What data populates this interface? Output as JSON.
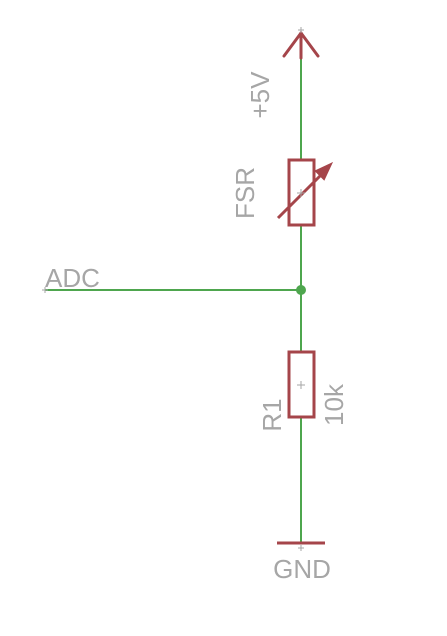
{
  "schematic": {
    "labels": {
      "vcc": "+5V",
      "fsr": "FSR",
      "adc": "ADC",
      "r1_name": "R1",
      "r1_value": "10k",
      "gnd": "GND"
    },
    "colors": {
      "wire": "#4ea64e",
      "junction": "#4ea64e",
      "symbol": "#a5454a",
      "text": "#a6a6a6",
      "origin_mark": "#a6a6a6"
    }
  }
}
